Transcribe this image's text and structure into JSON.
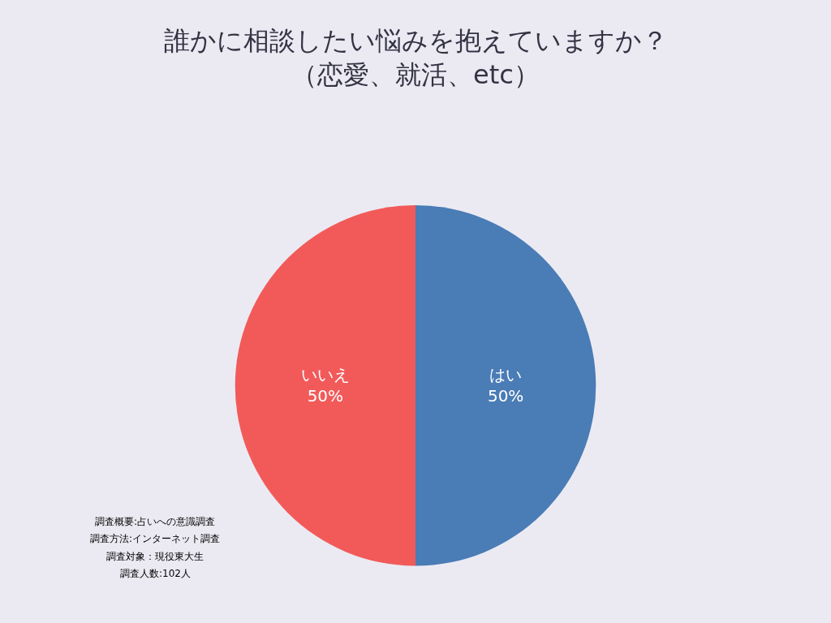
{
  "chart_data": {
    "type": "pie",
    "title": "誰かに相談したい悩みを抱えていますか？（恋愛、就活、etc）",
    "categories": [
      "はい",
      "いいえ"
    ],
    "values": [
      50,
      50
    ],
    "value_labels": [
      "50%",
      "50%"
    ],
    "colors": [
      "#4a7cb6",
      "#f25a5a"
    ],
    "legend": false,
    "annotations": [
      "調査概要:占いへの意識調査",
      "調査方法:インターネット調査",
      "調査対象：現役東大生",
      "調査人数:102人"
    ]
  }
}
